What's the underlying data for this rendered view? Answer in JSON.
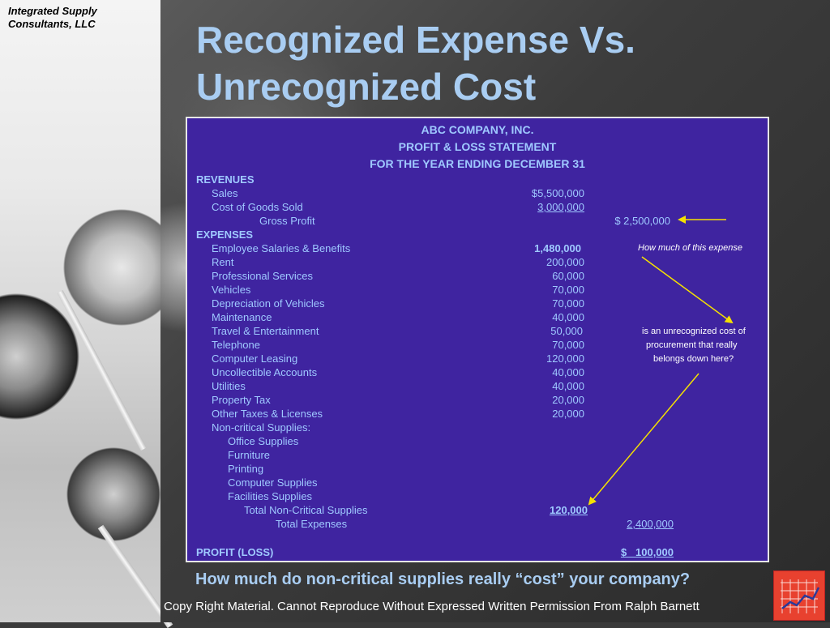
{
  "company": {
    "line1": "Integrated Supply",
    "line2": "Consultants, LLC"
  },
  "title": {
    "line1": "Recognized Expense Vs.",
    "line2": "Unrecognized Cost"
  },
  "statement": {
    "header1": "ABC COMPANY, INC.",
    "header2": "PROFIT & LOSS STATEMENT",
    "header3": "FOR THE YEAR ENDING DECEMBER 31",
    "revenues_label": "REVENUES",
    "sales_label": "Sales",
    "sales_value": "$5,500,000",
    "cogs_label": "Cost of Goods Sold",
    "cogs_value": "3,000,000",
    "gross_profit_label": "Gross Profit",
    "gross_profit_value": "$ 2,500,000",
    "expenses_label": "EXPENSES",
    "expenses": [
      {
        "label": "Employee Salaries & Benefits",
        "value": "1,480,000"
      },
      {
        "label": "Rent",
        "value": "200,000"
      },
      {
        "label": "Professional Services",
        "value": "60,000"
      },
      {
        "label": "Vehicles",
        "value": "70,000"
      },
      {
        "label": "Depreciation of Vehicles",
        "value": "70,000"
      },
      {
        "label": "Maintenance",
        "value": "40,000"
      },
      {
        "label": "Travel & Entertainment",
        "value": "50,000"
      },
      {
        "label": "Telephone",
        "value": "70,000"
      },
      {
        "label": "Computer Leasing",
        "value": "120,000"
      },
      {
        "label": "Uncollectible Accounts",
        "value": "40,000"
      },
      {
        "label": "Utilities",
        "value": "40,000"
      },
      {
        "label": "Property Tax",
        "value": "20,000"
      },
      {
        "label": "Other Taxes & Licenses",
        "value": "20,000"
      }
    ],
    "noncritical_label": "Non-critical Supplies:",
    "noncritical_items": [
      "Office Supplies",
      "Furniture",
      "Printing",
      "Computer Supplies",
      "Facilities Supplies"
    ],
    "total_noncritical_label": "Total Non-Critical Supplies",
    "total_noncritical_value": "120,000",
    "total_expenses_label": "Total Expenses",
    "total_expenses_value": "2,400,000",
    "profit_label": "PROFIT (LOSS)",
    "profit_value": "$   100,000"
  },
  "notes": {
    "note1": "How much of this expense",
    "note2a": "is an unrecognized cost of",
    "note2b": "procurement that really",
    "note2c": "belongs down here?"
  },
  "bottom_question": "How much do non-critical supplies really “cost” your company?",
  "copyright": "Copy Right Material. Cannot Reproduce Without Expressed Written Permission From Ralph Barnett",
  "colors": {
    "box_bg": "#3f24a0",
    "text": "#9fc9ff",
    "title": "#a9cdf2",
    "arrow": "#f5e100"
  }
}
